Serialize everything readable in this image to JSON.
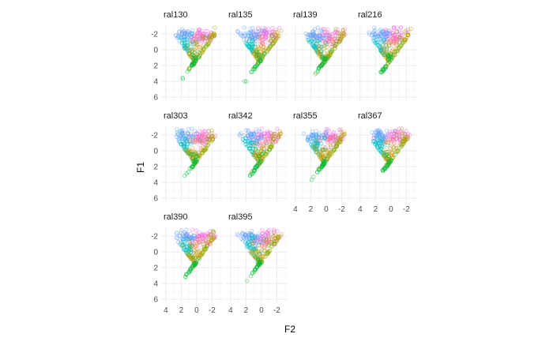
{
  "chart_data": {
    "type": "scatter",
    "xlabel": "F2",
    "ylabel": "F1",
    "x_reversed": true,
    "y_reversed": true,
    "xlim": [
      4.5,
      -3.5
    ],
    "ylim": [
      -3.0,
      6.5
    ],
    "x_ticks": [
      "4",
      "2",
      "0",
      "-2"
    ],
    "y_ticks": [
      "-2",
      "0",
      "2",
      "4",
      "6"
    ],
    "grid": true,
    "legend": "none",
    "panels": [
      "ral130",
      "ral135",
      "ral139",
      "ral216",
      "ral303",
      "ral342",
      "ral355",
      "ral367",
      "ral390",
      "ral395"
    ],
    "series_colors": [
      "#F8766D",
      "#00BA38",
      "#619CFF",
      "#F564E3",
      "#00BFC4",
      "#B79F00",
      "#C49A00",
      "#7CAE00"
    ],
    "marker": "open-circle",
    "note_points": "dense vowel-formant clouds per panel; approximate extent F2 from 3.5 to -2.6, F1 from -2.8 to 6"
  }
}
